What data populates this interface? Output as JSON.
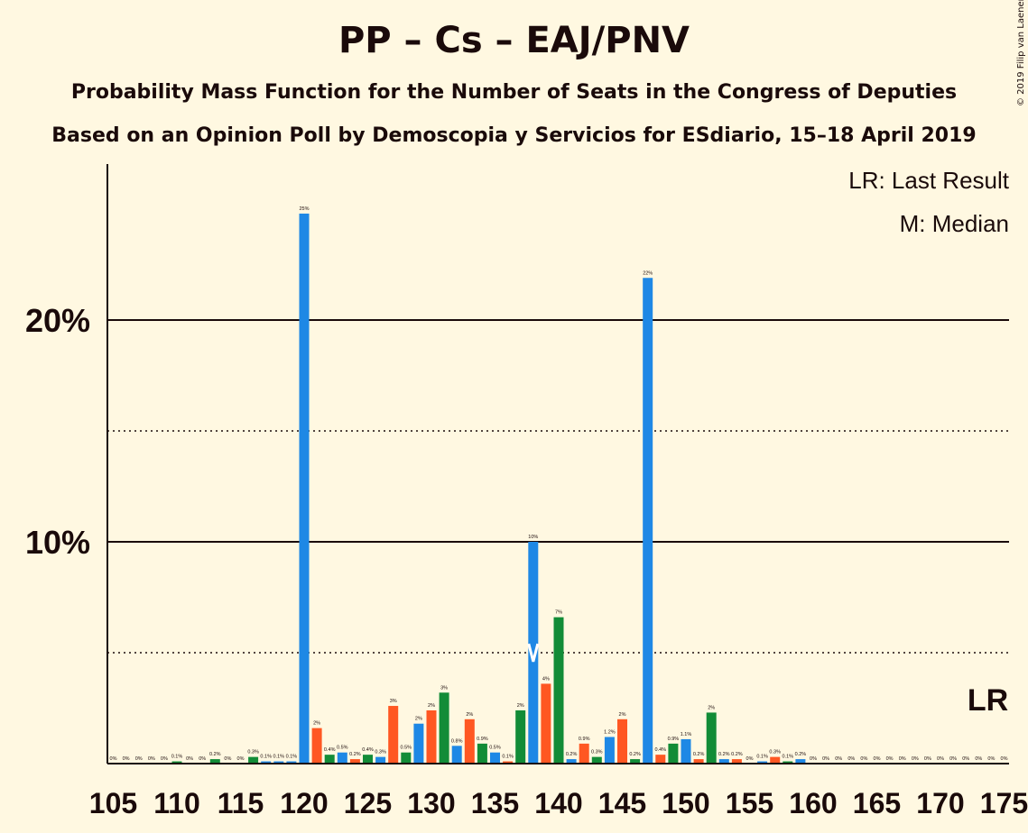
{
  "title": "PP – Cs – EAJ/PNV",
  "subtitle1": "Probability Mass Function for the Number of Seats in the Congress of Deputies",
  "subtitle2": "Based on an Opinion Poll by Demoscopia y Servicios for ESdiario, 15–18 April 2019",
  "copyright": "© 2019 Filip van Laenen",
  "legend": {
    "lr": "LR: Last Result",
    "median": "M: Median"
  },
  "colors": {
    "blue": "#1E88E5",
    "orange": "#FF5722",
    "green": "#128C37",
    "background": "#FFF8E1",
    "text": "#1a0a0a"
  },
  "chart_data": {
    "type": "bar",
    "xlim": [
      105,
      175
    ],
    "ylim": [
      0,
      27
    ],
    "x_ticks": [
      105,
      110,
      115,
      120,
      125,
      130,
      135,
      140,
      145,
      150,
      155,
      160,
      165,
      170,
      175
    ],
    "y_ticks_solid": [
      {
        "value": 10,
        "label": "10%"
      },
      {
        "value": 20,
        "label": "20%"
      }
    ],
    "y_ticks_dotted": [
      5,
      15
    ],
    "median_seat": 138,
    "last_result_seat": 175,
    "last_result_label": "LR",
    "bars": [
      {
        "x": 105,
        "value": 0,
        "label": "0%",
        "color": "blue"
      },
      {
        "x": 106,
        "value": 0,
        "label": "0%",
        "color": "blue"
      },
      {
        "x": 107,
        "value": 0,
        "label": "0%",
        "color": "blue"
      },
      {
        "x": 108,
        "value": 0,
        "label": "0%",
        "color": "blue"
      },
      {
        "x": 109,
        "value": 0,
        "label": "0%",
        "color": "blue"
      },
      {
        "x": 110,
        "value": 0.1,
        "label": "0.1%",
        "color": "green"
      },
      {
        "x": 111,
        "value": 0,
        "label": "0%",
        "color": "blue"
      },
      {
        "x": 112,
        "value": 0,
        "label": "0%",
        "color": "blue"
      },
      {
        "x": 113,
        "value": 0.2,
        "label": "0.2%",
        "color": "green"
      },
      {
        "x": 114,
        "value": 0,
        "label": "0%",
        "color": "blue"
      },
      {
        "x": 115,
        "value": 0,
        "label": "0%",
        "color": "blue"
      },
      {
        "x": 116,
        "value": 0.3,
        "label": "0.3%",
        "color": "green"
      },
      {
        "x": 117,
        "value": 0.1,
        "label": "0.1%",
        "color": "blue"
      },
      {
        "x": 118,
        "value": 0.1,
        "label": "0.1%",
        "color": "blue"
      },
      {
        "x": 119,
        "value": 0.1,
        "label": "0.1%",
        "color": "blue"
      },
      {
        "x": 120,
        "value": 24.8,
        "label": "25%",
        "color": "blue"
      },
      {
        "x": 121,
        "value": 1.6,
        "label": "2%",
        "color": "orange"
      },
      {
        "x": 122,
        "value": 0.4,
        "label": "0.4%",
        "color": "green"
      },
      {
        "x": 123,
        "value": 0.5,
        "label": "0.5%",
        "color": "blue"
      },
      {
        "x": 124,
        "value": 0.2,
        "label": "0.2%",
        "color": "orange"
      },
      {
        "x": 125,
        "value": 0.4,
        "label": "0.4%",
        "color": "green"
      },
      {
        "x": 126,
        "value": 0.3,
        "label": "0.3%",
        "color": "blue"
      },
      {
        "x": 127,
        "value": 2.6,
        "label": "3%",
        "color": "orange"
      },
      {
        "x": 128,
        "value": 0.5,
        "label": "0.5%",
        "color": "green"
      },
      {
        "x": 129,
        "value": 1.8,
        "label": "2%",
        "color": "blue"
      },
      {
        "x": 130,
        "value": 2.4,
        "label": "2%",
        "color": "orange"
      },
      {
        "x": 131,
        "value": 3.2,
        "label": "3%",
        "color": "green"
      },
      {
        "x": 132,
        "value": 0.8,
        "label": "0.8%",
        "color": "blue"
      },
      {
        "x": 133,
        "value": 2.0,
        "label": "2%",
        "color": "orange"
      },
      {
        "x": 134,
        "value": 0.9,
        "label": "0.9%",
        "color": "green"
      },
      {
        "x": 135,
        "value": 0.5,
        "label": "0.5%",
        "color": "blue"
      },
      {
        "x": 136,
        "value": 0.1,
        "label": "0.1%",
        "color": "orange"
      },
      {
        "x": 137,
        "value": 2.4,
        "label": "2%",
        "color": "green"
      },
      {
        "x": 138,
        "value": 10.0,
        "label": "10%",
        "color": "blue"
      },
      {
        "x": 139,
        "value": 3.6,
        "label": "4%",
        "color": "orange"
      },
      {
        "x": 140,
        "value": 6.6,
        "label": "7%",
        "color": "green"
      },
      {
        "x": 141,
        "value": 0.2,
        "label": "0.2%",
        "color": "blue"
      },
      {
        "x": 142,
        "value": 0.9,
        "label": "0.9%",
        "color": "orange"
      },
      {
        "x": 143,
        "value": 0.3,
        "label": "0.3%",
        "color": "green"
      },
      {
        "x": 144,
        "value": 1.2,
        "label": "1.2%",
        "color": "blue"
      },
      {
        "x": 145,
        "value": 2.0,
        "label": "2%",
        "color": "orange"
      },
      {
        "x": 146,
        "value": 0.2,
        "label": "0.2%",
        "color": "green"
      },
      {
        "x": 147,
        "value": 21.9,
        "label": "22%",
        "color": "blue"
      },
      {
        "x": 148,
        "value": 0.4,
        "label": "0.4%",
        "color": "orange"
      },
      {
        "x": 149,
        "value": 0.9,
        "label": "0.9%",
        "color": "green"
      },
      {
        "x": 150,
        "value": 1.1,
        "label": "1.1%",
        "color": "blue"
      },
      {
        "x": 151,
        "value": 0.2,
        "label": "0.2%",
        "color": "orange"
      },
      {
        "x": 152,
        "value": 2.3,
        "label": "2%",
        "color": "green"
      },
      {
        "x": 153,
        "value": 0.2,
        "label": "0.2%",
        "color": "blue"
      },
      {
        "x": 154,
        "value": 0.2,
        "label": "0.2%",
        "color": "orange"
      },
      {
        "x": 155,
        "value": 0,
        "label": "0%",
        "color": "green"
      },
      {
        "x": 156,
        "value": 0.1,
        "label": "0.1%",
        "color": "blue"
      },
      {
        "x": 157,
        "value": 0.3,
        "label": "0.3%",
        "color": "orange"
      },
      {
        "x": 158,
        "value": 0.1,
        "label": "0.1%",
        "color": "green"
      },
      {
        "x": 159,
        "value": 0.2,
        "label": "0.2%",
        "color": "blue"
      },
      {
        "x": 160,
        "value": 0,
        "label": "0%",
        "color": "blue"
      },
      {
        "x": 161,
        "value": 0,
        "label": "0%",
        "color": "blue"
      },
      {
        "x": 162,
        "value": 0,
        "label": "0%",
        "color": "blue"
      },
      {
        "x": 163,
        "value": 0,
        "label": "0%",
        "color": "blue"
      },
      {
        "x": 164,
        "value": 0,
        "label": "0%",
        "color": "blue"
      },
      {
        "x": 165,
        "value": 0,
        "label": "0%",
        "color": "blue"
      },
      {
        "x": 166,
        "value": 0,
        "label": "0%",
        "color": "blue"
      },
      {
        "x": 167,
        "value": 0,
        "label": "0%",
        "color": "blue"
      },
      {
        "x": 168,
        "value": 0,
        "label": "0%",
        "color": "blue"
      },
      {
        "x": 169,
        "value": 0,
        "label": "0%",
        "color": "blue"
      },
      {
        "x": 170,
        "value": 0,
        "label": "0%",
        "color": "blue"
      },
      {
        "x": 171,
        "value": 0,
        "label": "0%",
        "color": "blue"
      },
      {
        "x": 172,
        "value": 0,
        "label": "0%",
        "color": "blue"
      },
      {
        "x": 173,
        "value": 0,
        "label": "0%",
        "color": "blue"
      },
      {
        "x": 174,
        "value": 0,
        "label": "0%",
        "color": "blue"
      },
      {
        "x": 175,
        "value": 0,
        "label": "0%",
        "color": "blue"
      }
    ]
  }
}
